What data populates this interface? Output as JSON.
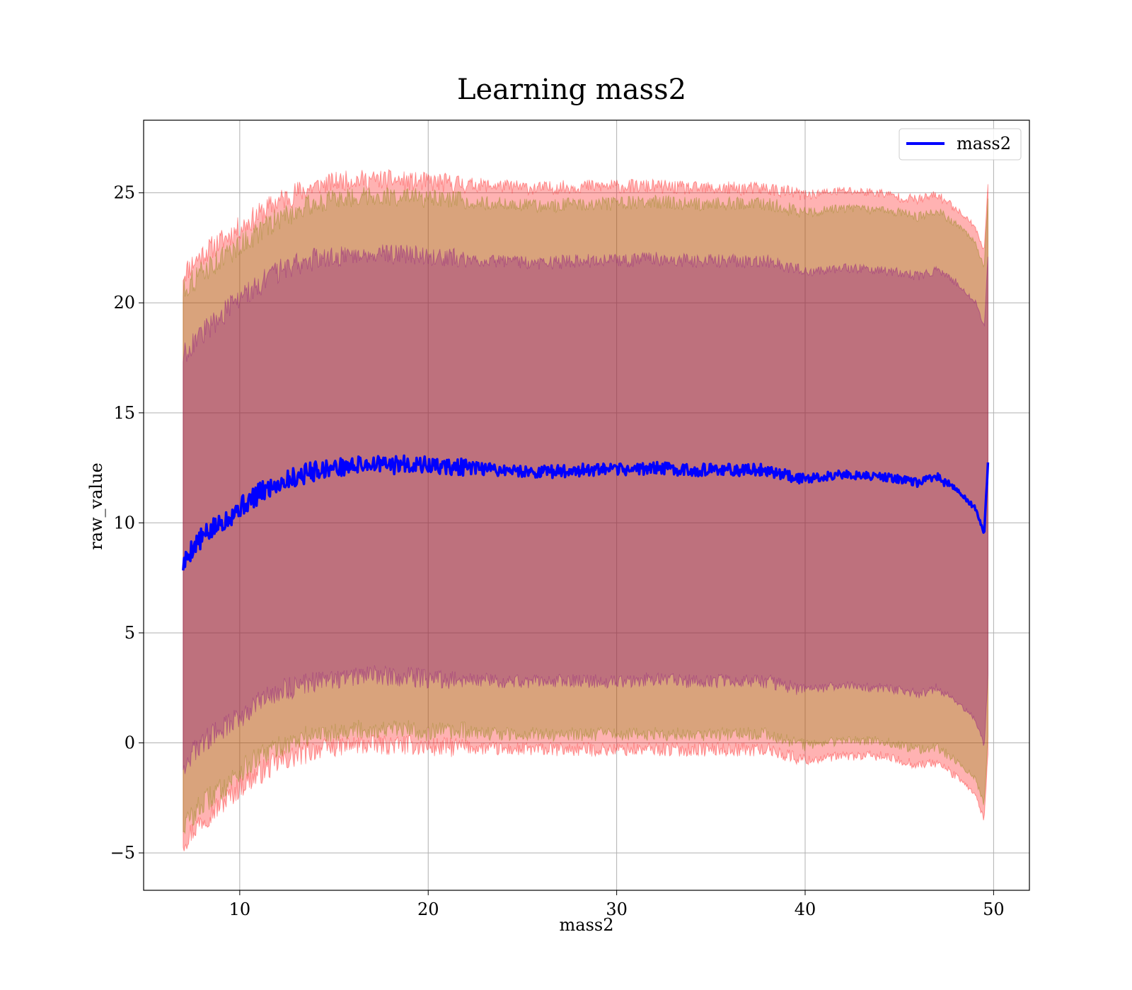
{
  "chart_data": {
    "type": "area",
    "title": "Learning mass2",
    "xlabel": "mass2",
    "ylabel": "raw_value",
    "xlim": [
      4.9,
      51.9
    ],
    "ylim": [
      -6.7,
      28.3
    ],
    "xticks": [
      10,
      20,
      30,
      40,
      50
    ],
    "yticks": [
      -5,
      0,
      5,
      10,
      15,
      20,
      25
    ],
    "grid": true,
    "legend": {
      "position": "top-right",
      "entries": [
        "mass2"
      ]
    },
    "x": [
      7.0,
      7.5,
      8.0,
      9.0,
      10.0,
      11.0,
      12.0,
      13.0,
      14.0,
      15.0,
      16.0,
      17.0,
      18.0,
      19.0,
      20.0,
      22.0,
      24.0,
      26.0,
      28.0,
      30.0,
      32.0,
      34.0,
      36.0,
      38.0,
      40.0,
      42.0,
      44.0,
      45.0,
      46.0,
      47.0,
      48.0,
      49.0,
      49.5,
      49.7
    ],
    "series": [
      {
        "name": "mass2",
        "color": "#0000ff",
        "values": [
          8.1,
          8.9,
          9.3,
          10.0,
          10.7,
          11.3,
          11.8,
          12.1,
          12.4,
          12.5,
          12.6,
          12.7,
          12.6,
          12.7,
          12.6,
          12.5,
          12.4,
          12.3,
          12.4,
          12.4,
          12.5,
          12.4,
          12.4,
          12.4,
          12.0,
          12.2,
          12.1,
          12.0,
          11.8,
          12.1,
          11.5,
          10.7,
          9.5,
          12.7
        ]
      }
    ],
    "bands": [
      {
        "color": "#ff0000",
        "opacity": 0.3,
        "upper": [
          21.3,
          21.8,
          22.2,
          22.8,
          23.4,
          24.0,
          24.6,
          25.0,
          25.3,
          25.5,
          25.6,
          25.6,
          25.6,
          25.5,
          25.5,
          25.4,
          25.3,
          25.2,
          25.3,
          25.3,
          25.3,
          25.2,
          25.2,
          25.2,
          24.9,
          25.1,
          25.0,
          24.8,
          24.7,
          24.9,
          24.3,
          23.5,
          22.3,
          25.5
        ],
        "lower": [
          -4.5,
          -4.0,
          -3.5,
          -2.8,
          -2.0,
          -1.4,
          -0.9,
          -0.6,
          -0.3,
          -0.2,
          -0.1,
          -0.1,
          -0.1,
          -0.1,
          -0.2,
          -0.2,
          -0.3,
          -0.3,
          -0.3,
          -0.3,
          -0.3,
          -0.3,
          -0.3,
          -0.3,
          -0.8,
          -0.6,
          -0.6,
          -0.8,
          -1.0,
          -0.9,
          -1.5,
          -2.3,
          -3.5,
          -0.5
        ]
      },
      {
        "color": "#808000",
        "opacity": 0.3,
        "upper": [
          20.6,
          21.0,
          21.4,
          22.0,
          22.6,
          23.2,
          23.8,
          24.2,
          24.5,
          24.7,
          24.8,
          24.9,
          24.8,
          24.8,
          24.7,
          24.6,
          24.5,
          24.4,
          24.5,
          24.5,
          24.6,
          24.5,
          24.5,
          24.5,
          24.1,
          24.3,
          24.2,
          24.1,
          23.9,
          24.2,
          23.6,
          22.8,
          21.6,
          24.8
        ],
        "lower": [
          -3.8,
          -3.3,
          -2.8,
          -2.1,
          -1.3,
          -0.7,
          -0.2,
          0.1,
          0.4,
          0.5,
          0.6,
          0.6,
          0.6,
          0.6,
          0.5,
          0.5,
          0.4,
          0.4,
          0.4,
          0.4,
          0.4,
          0.4,
          0.4,
          0.4,
          -0.1,
          0.1,
          0.1,
          -0.1,
          -0.3,
          -0.2,
          -0.8,
          -1.6,
          -2.8,
          0.2
        ]
      },
      {
        "color": "#800080",
        "opacity": 0.3,
        "upper": [
          17.6,
          18.2,
          18.6,
          19.4,
          20.2,
          20.8,
          21.4,
          21.8,
          22.0,
          22.1,
          22.2,
          22.3,
          22.2,
          22.2,
          22.1,
          22.0,
          21.9,
          21.8,
          21.9,
          21.9,
          22.0,
          21.9,
          21.9,
          21.9,
          21.4,
          21.6,
          21.5,
          21.4,
          21.2,
          21.5,
          20.9,
          20.1,
          18.9,
          22.1
        ],
        "lower": [
          -1.0,
          -0.5,
          0.0,
          0.6,
          1.2,
          1.8,
          2.3,
          2.6,
          2.8,
          2.9,
          3.0,
          3.1,
          3.0,
          3.0,
          2.9,
          2.9,
          2.8,
          2.8,
          2.8,
          2.8,
          2.9,
          2.8,
          2.8,
          2.8,
          2.4,
          2.6,
          2.5,
          2.4,
          2.2,
          2.5,
          1.9,
          1.1,
          -0.1,
          3.1
        ]
      }
    ]
  }
}
